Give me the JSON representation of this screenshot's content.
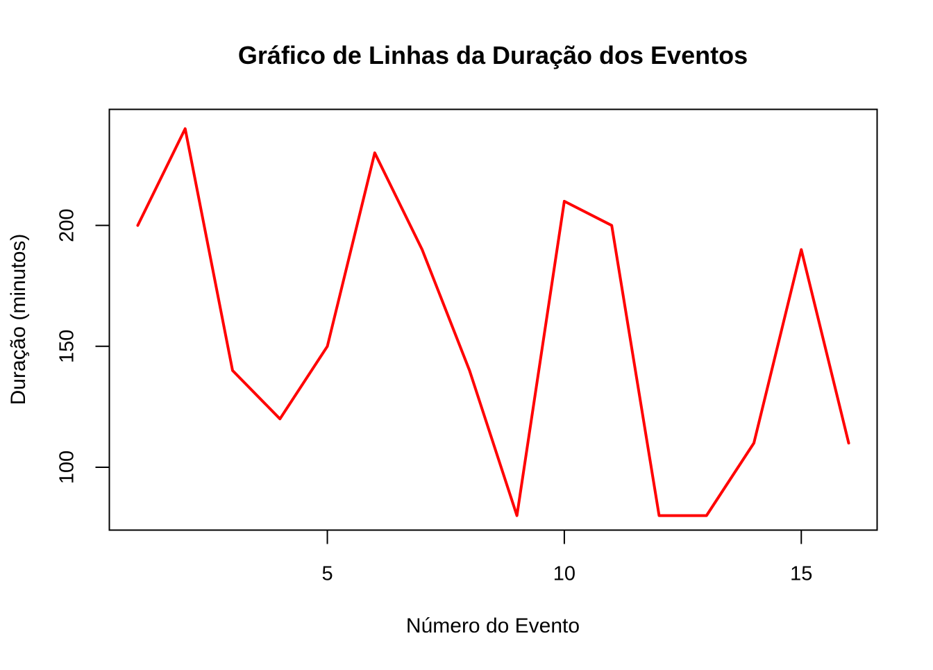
{
  "chart_data": {
    "type": "line",
    "title": "Gráfico de Linhas da Duração dos Eventos",
    "xlabel": "Número do Evento",
    "ylabel": "Duração (minutos)",
    "xlim": [
      0.4,
      16.6
    ],
    "ylim": [
      74,
      248
    ],
    "x_ticks": [
      5,
      10,
      15
    ],
    "y_ticks": [
      100,
      150,
      200
    ],
    "grid": false,
    "legend": "none",
    "line_color": "#ff0000",
    "x": [
      1,
      2,
      3,
      4,
      5,
      6,
      7,
      8,
      9,
      10,
      11,
      12,
      13,
      14,
      15,
      16
    ],
    "series": [
      {
        "values": [
          200,
          240,
          140,
          120,
          150,
          230,
          190,
          140,
          80,
          210,
          200,
          80,
          80,
          110,
          190,
          110
        ]
      }
    ]
  }
}
